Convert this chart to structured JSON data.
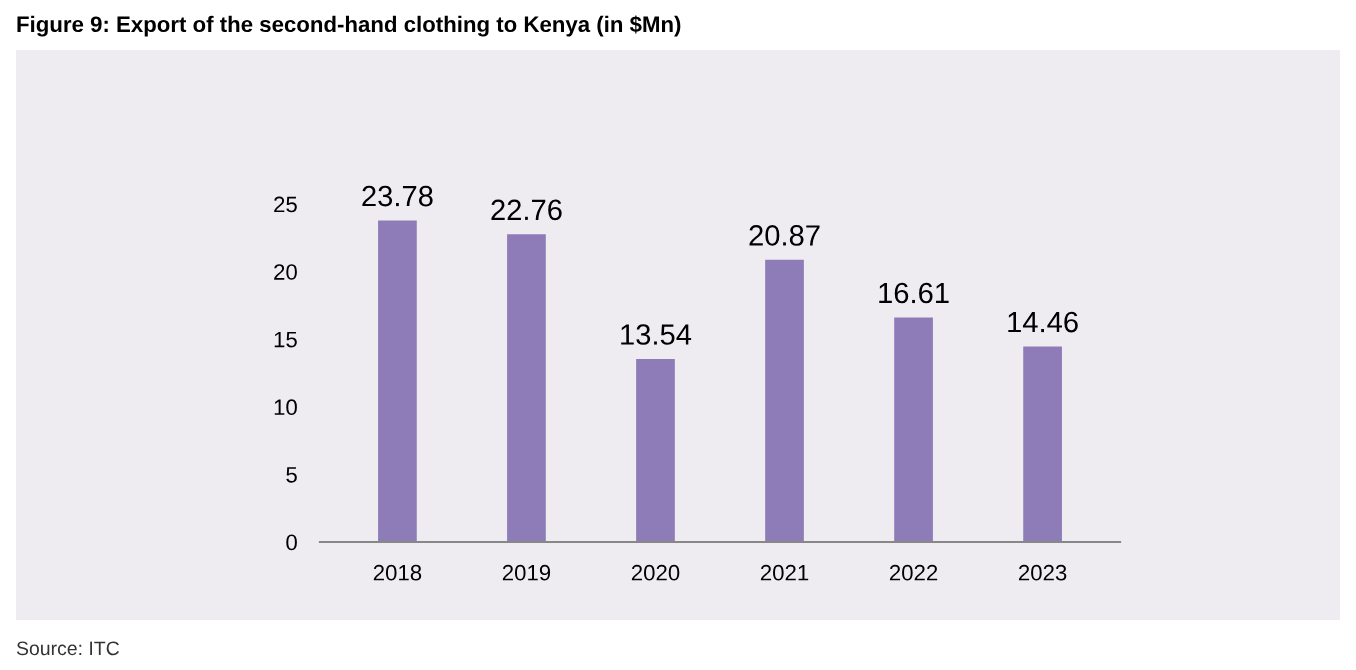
{
  "chart_data": {
    "type": "bar",
    "title": "Figure 9: Export of the second-hand clothing to Kenya (in $Mn)",
    "categories": [
      "2018",
      "2019",
      "2020",
      "2021",
      "2022",
      "2023"
    ],
    "values": [
      23.78,
      22.76,
      13.54,
      20.87,
      16.61,
      14.46
    ],
    "color": "#8e7cb8",
    "ylim": [
      0,
      25
    ],
    "yticks": [
      0,
      5,
      10,
      15,
      20,
      25
    ],
    "grid": false,
    "data_labels": true,
    "annotations": [
      "Source: ITC"
    ]
  }
}
